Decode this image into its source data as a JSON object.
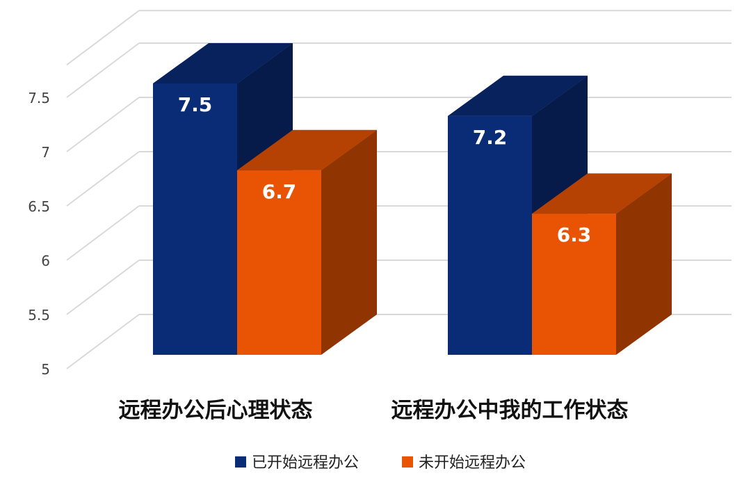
{
  "chart_data": {
    "type": "bar",
    "categories": [
      "远程办公后心理状态",
      "远程办公中我的工作状态"
    ],
    "series": [
      {
        "name": "已开始远程办公",
        "values": [
          7.5,
          7.2
        ],
        "color": "#0A2C77"
      },
      {
        "name": "未开始远程办公",
        "values": [
          6.7,
          6.3
        ],
        "color": "#E85404"
      }
    ],
    "data_labels": [
      [
        "7.5",
        "7.2"
      ],
      [
        "6.7",
        "6.3"
      ]
    ],
    "ylim": [
      5,
      7.5
    ],
    "yticks": [
      "5",
      "5.5",
      "6",
      "6.5",
      "7",
      "7.5"
    ],
    "grid": true,
    "legend": "bottom",
    "style": "3d-column"
  }
}
